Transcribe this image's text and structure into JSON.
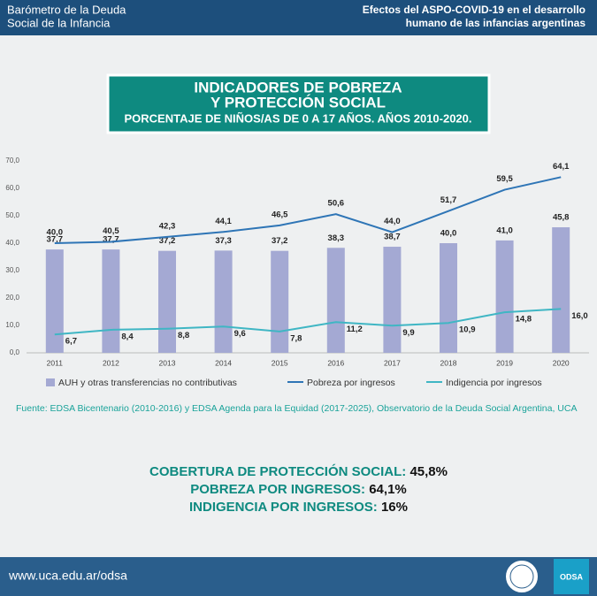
{
  "header": {
    "left": [
      "Barómetro de la Deuda",
      "Social de la Infancia"
    ],
    "right": [
      "Efectos del ASPO-COVID-19 en el desarrollo",
      "humano de las infancias argentinas"
    ]
  },
  "chart_data": {
    "type": "bar",
    "title": [
      "INDICADORES DE POBREZA",
      "Y PROTECCIÓN SOCIAL"
    ],
    "subtitle": "PORCENTAJE DE NIÑOS/AS DE 0 A 17 AÑOS. AÑOS 2010-2020.",
    "categories": [
      "2011",
      "2012",
      "2013",
      "2014",
      "2015",
      "2016",
      "2017",
      "2018",
      "2019",
      "2020"
    ],
    "series": [
      {
        "name": "AUH y otras transferencias no contributivas",
        "type": "bar",
        "color": "#a4a9d3",
        "values": [
          37.7,
          37.7,
          37.2,
          37.3,
          37.2,
          38.3,
          38.7,
          40.0,
          41.0,
          45.8
        ],
        "value_labels": [
          "37,7",
          "37,7",
          "37,2",
          "37,3",
          "37,2",
          "38,3",
          "38,7",
          "40,0",
          "41,0",
          "45,8"
        ]
      },
      {
        "name": "Pobreza por ingresos",
        "type": "line",
        "color": "#2e75b6",
        "values": [
          40.0,
          40.5,
          42.3,
          44.1,
          46.5,
          50.6,
          44.0,
          51.7,
          59.5,
          64.1
        ],
        "value_labels": [
          "40,0",
          "40,5",
          "42,3",
          "44,1",
          "46,5",
          "50,6",
          "44,0",
          "51,7",
          "59,5",
          "64,1"
        ]
      },
      {
        "name": "Indigencia por ingresos",
        "type": "line",
        "color": "#3fb6c4",
        "values": [
          6.7,
          8.4,
          8.8,
          9.6,
          7.8,
          11.2,
          9.9,
          10.9,
          14.8,
          16.0
        ],
        "value_labels": [
          "6,7",
          "8,4",
          "8,8",
          "9,6",
          "7,8",
          "11,2",
          "9,9",
          "10,9",
          "14,8",
          "16,0"
        ]
      }
    ],
    "ylim": [
      0,
      70
    ],
    "yticks": [
      {
        "value": 0,
        "label": "0,0"
      },
      {
        "value": 10,
        "label": "10,0"
      },
      {
        "value": 20,
        "label": "20,0"
      },
      {
        "value": 30,
        "label": "30,0"
      },
      {
        "value": 40,
        "label": "40,0"
      },
      {
        "value": 50,
        "label": "50,0"
      },
      {
        "value": 60,
        "label": "60,0"
      },
      {
        "value": 70,
        "label": "70,0"
      }
    ],
    "grid": false
  },
  "source": "Fuente: EDSA Bicentenario (2010-2016) y EDSA Agenda para la Equidad (2017-2025), Observatorio de la Deuda Social Argentina, UCA",
  "summary": [
    {
      "label": "COBERTURA DE PROTECCIÓN SOCIAL:",
      "value": "45,8%"
    },
    {
      "label": "POBREZA POR INGRESOS:",
      "value": "64,1%"
    },
    {
      "label": "INDIGENCIA POR INGRESOS:",
      "value": "16%"
    }
  ],
  "footer": {
    "url": "www.uca.edu.ar/odsa",
    "logo": "ODSA"
  }
}
